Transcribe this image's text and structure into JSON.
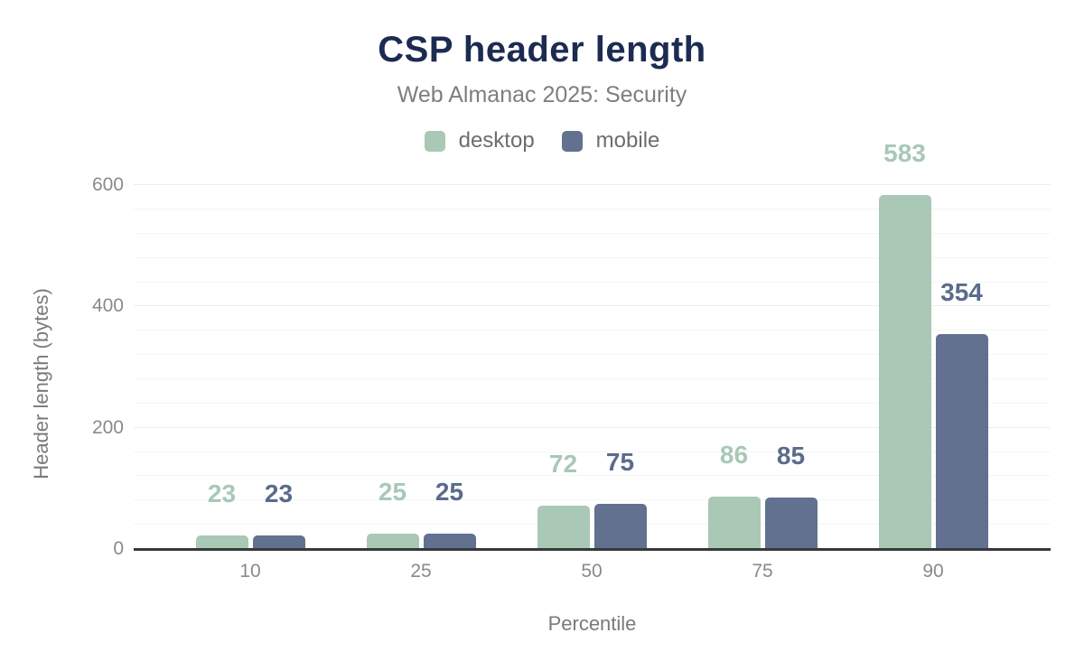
{
  "chart_data": {
    "type": "bar",
    "title": "CSP header length",
    "subtitle": "Web Almanac 2025: Security",
    "categories": [
      "10",
      "25",
      "50",
      "75",
      "90"
    ],
    "series": [
      {
        "name": "desktop",
        "color": "#a9c8b6",
        "label_color": "#a9c8b6",
        "values": [
          23,
          25,
          72,
          86,
          583
        ]
      },
      {
        "name": "mobile",
        "color": "#61718f",
        "label_color": "#5b6b8c",
        "values": [
          23,
          25,
          75,
          85,
          354
        ]
      }
    ],
    "xlabel": "Percentile",
    "ylabel": "Header length (bytes)",
    "ylim": [
      0,
      600
    ],
    "yticks": [
      0,
      200,
      400,
      600
    ],
    "minor_grid_step": 40,
    "grid": "horizontal",
    "legend_position": "top",
    "value_labels": true
  },
  "colors": {
    "title": "#1c2b51",
    "subtitle": "#7e7e7e",
    "legend_text": "#6d6d6d",
    "axis_tick_text": "#8a8a8a",
    "axis_title_text": "#7a7a7a",
    "baseline": "#37383a",
    "grid_major": "#ececec",
    "grid_minor": "#f5f5f5",
    "background": "#ffffff"
  }
}
